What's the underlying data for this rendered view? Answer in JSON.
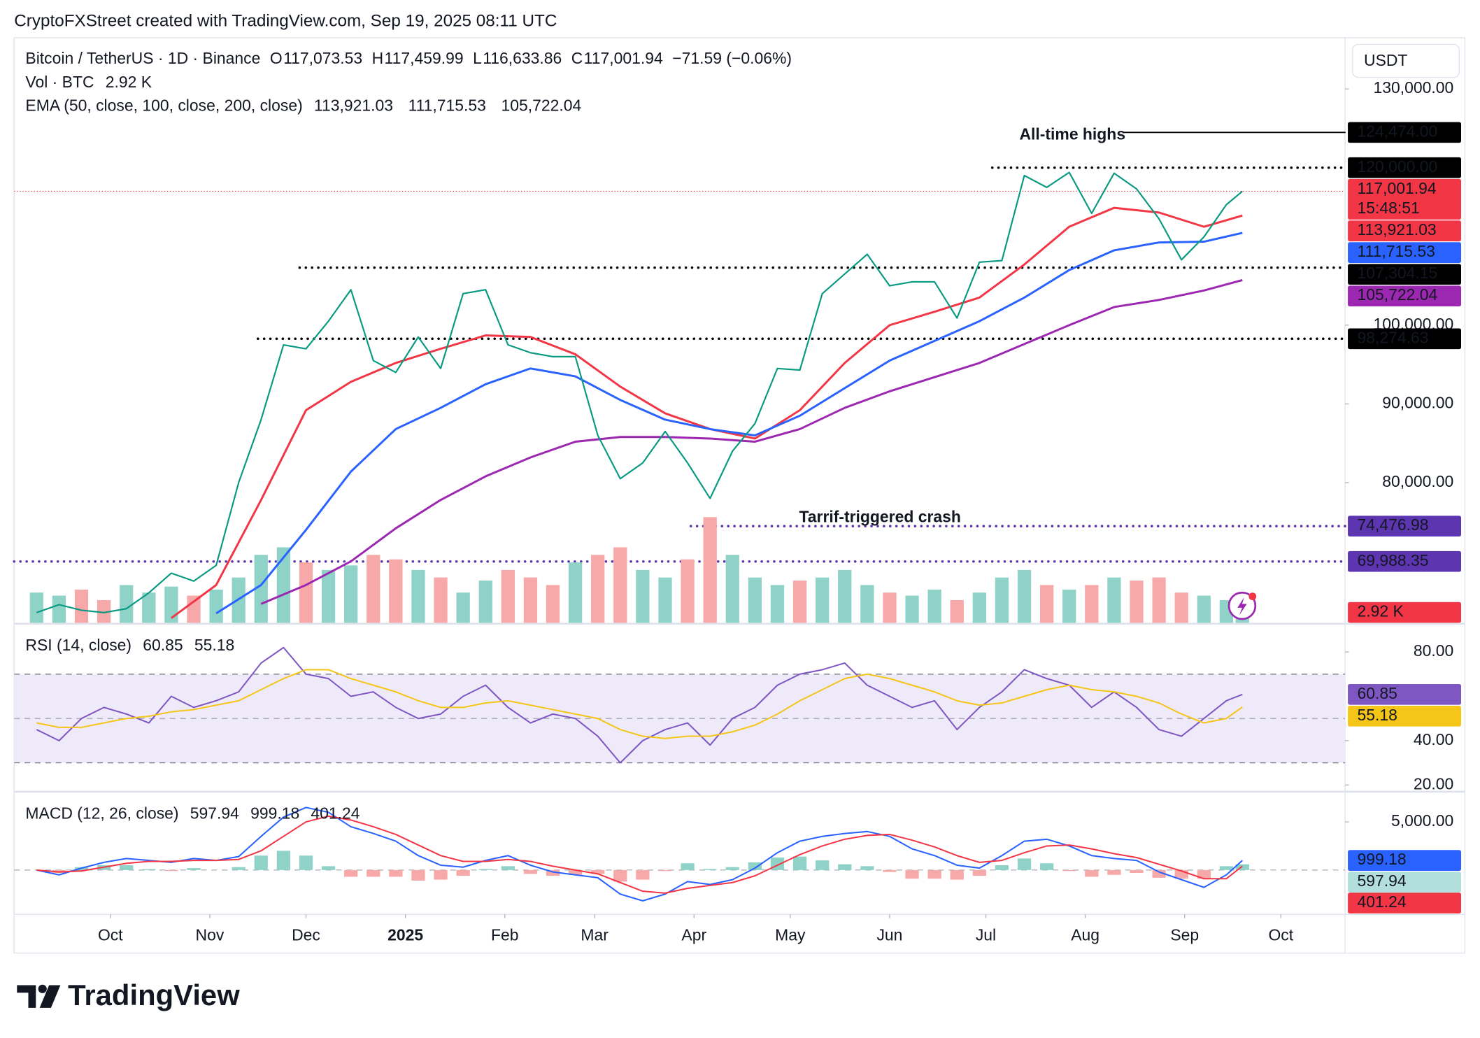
{
  "header": {
    "text": "CryptoFXStreet created with TradingView.com, Sep 19, 2025 08:11 UTC"
  },
  "currency": "USDT",
  "logo": "TradingView",
  "chart_data": [
    {
      "type": "line",
      "title": "Bitcoin / TetherUS · 1D · Binance",
      "readout_color": "#f23645",
      "ohlc": [
        {
          "key": "O",
          "text": "117,073.53"
        },
        {
          "key": "H",
          "text": "117,459.99"
        },
        {
          "key": "L",
          "text": "116,633.86"
        },
        {
          "key": "C",
          "text": "117,001.94"
        }
      ],
      "change": "−71.59 (−0.06%)",
      "x": [
        7,
        14,
        21,
        28,
        35,
        42,
        49,
        56,
        63,
        70,
        77,
        84,
        91,
        98,
        105,
        112,
        119,
        126,
        133,
        140,
        147,
        154,
        161,
        168,
        175,
        182,
        189,
        196,
        203,
        210,
        217,
        224,
        231,
        238,
        245,
        252,
        259,
        266,
        273,
        280,
        287,
        294,
        301,
        308,
        315,
        322,
        329,
        336,
        343,
        350,
        357,
        364,
        371,
        378,
        383
      ],
      "xlim": [
        0,
        415
      ],
      "ylim": [
        62200,
        136500
      ],
      "yticks": [
        {
          "value": 80000,
          "label": "80,000.00"
        },
        {
          "value": 90000,
          "label": "90,000.00"
        },
        {
          "value": 100000,
          "label": "100,000.00"
        },
        {
          "value": 130000,
          "label": "130,000.00"
        }
      ],
      "y2lim": [
        0,
        100000
      ],
      "series": [
        {
          "color": "#089981",
          "last_line": true,
          "last_label": "117,001.94",
          "countdown": "15:48:51",
          "box_color": "#f23645",
          "values": [
            63500,
            64500,
            63800,
            63500,
            64000,
            66000,
            68500,
            67500,
            69500,
            80000,
            88000,
            97500,
            97000,
            100500,
            104500,
            95500,
            94000,
            98500,
            94500,
            104000,
            104500,
            97500,
            96500,
            96000,
            96000,
            86000,
            80500,
            82500,
            86500,
            82500,
            78000,
            84000,
            87500,
            94500,
            94300,
            104000,
            106500,
            109000,
            105000,
            105500,
            105500,
            100900,
            108000,
            108200,
            119000,
            117500,
            119400,
            114200,
            119300,
            117300,
            113500,
            108300,
            111200,
            115300,
            117001.94
          ]
        },
        {
          "type": "bar",
          "axis": "y2",
          "title": "Vol · BTC",
          "up_color": "#8fd3c8",
          "down_color": "#f7a9a9",
          "color": "#f23645",
          "last_label": "2.92 K",
          "values": [
            20000,
            18000,
            22000,
            15000,
            25000,
            20000,
            24000,
            18000,
            22000,
            30000,
            45000,
            50000,
            40000,
            35000,
            38000,
            45000,
            42000,
            35000,
            30000,
            20000,
            28000,
            35000,
            30000,
            25000,
            40000,
            45000,
            50000,
            35000,
            30000,
            42000,
            70000,
            45000,
            30000,
            25000,
            28000,
            30000,
            35000,
            25000,
            20000,
            18000,
            22000,
            15000,
            20000,
            30000,
            35000,
            25000,
            22000,
            25000,
            30000,
            28000,
            30000,
            20000,
            18000,
            15000,
            2920
          ]
        }
      ],
      "ema": {
        "title": "EMA (50, close, 100, close, 200, close)",
        "series": [
          {
            "color": "#f23645",
            "last_label": "113,921.03",
            "x": [
              49,
              63,
              77,
              91,
              105,
              119,
              133,
              147,
              161,
              175,
              189,
              203,
              217,
              231,
              245,
              259,
              273,
              287,
              301,
              315,
              329,
              343,
              357,
              371,
              383
            ],
            "values": [
              62800,
              67000,
              77800,
              89200,
              92800,
              95200,
              97000,
              98700,
              98500,
              96300,
              92200,
              88800,
              86800,
              85600,
              89200,
              95200,
              100000,
              101700,
              103500,
              107700,
              112500,
              114900,
              114300,
              112500,
              113921.03
            ]
          },
          {
            "color": "#2962ff",
            "last_label": "111,715.53",
            "x": [
              63,
              77,
              91,
              105,
              119,
              133,
              147,
              161,
              175,
              189,
              203,
              217,
              231,
              245,
              259,
              273,
              287,
              301,
              315,
              329,
              343,
              357,
              371,
              383
            ],
            "values": [
              63400,
              67000,
              74000,
              81400,
              86800,
              89500,
              92500,
              94500,
              93500,
              90500,
              88000,
              86800,
              86000,
              88500,
              92000,
              95500,
              98000,
              100500,
              103500,
              107000,
              109500,
              110500,
              110600,
              111715.53
            ]
          },
          {
            "color": "#9c27b0",
            "last_label": "105,722.04",
            "x": [
              77,
              91,
              105,
              119,
              133,
              147,
              161,
              175,
              189,
              203,
              217,
              231,
              245,
              259,
              273,
              287,
              301,
              315,
              329,
              343,
              357,
              371,
              383
            ],
            "values": [
              64600,
              67000,
              70000,
              74200,
              77800,
              80800,
              83200,
              85200,
              85800,
              85800,
              85600,
              85200,
              86800,
              89500,
              91600,
              93400,
              95200,
              97600,
              100000,
              102300,
              103200,
              104400,
              105722.04
            ]
          }
        ]
      },
      "levels": [
        {
          "value": 124474,
          "label": "124,474.00",
          "from": 346,
          "style": "solid",
          "color": "#000000"
        },
        {
          "value": 120000,
          "label": "120,000.00",
          "from": 305,
          "style": "dotted",
          "color": "#000000"
        },
        {
          "value": 107304.15,
          "label": "107,304.15",
          "from": 89,
          "style": "dotted",
          "color": "#000000"
        },
        {
          "value": 98274.63,
          "label": "98,274.63",
          "from": 76,
          "style": "dotted",
          "color": "#000000"
        },
        {
          "value": 74476.98,
          "label": "74,476.98",
          "from": 211,
          "style": "dotted",
          "color": "#5e35b1"
        },
        {
          "value": 69988.35,
          "label": "69,988.35",
          "from": 0,
          "style": "dotted",
          "color": "#5e35b1"
        }
      ],
      "annotations": [
        {
          "text": "All-time highs",
          "x": 330,
          "y": 124100,
          "color": "#2962ff"
        },
        {
          "text": "Tarrif-triggered crash",
          "x": 270,
          "y": 75500,
          "color": "#2962ff"
        }
      ]
    },
    {
      "type": "line",
      "title": "RSI (14, close)",
      "x": [
        7,
        14,
        21,
        28,
        35,
        42,
        49,
        56,
        63,
        70,
        77,
        84,
        91,
        98,
        105,
        112,
        119,
        126,
        133,
        140,
        147,
        154,
        161,
        168,
        175,
        182,
        189,
        196,
        203,
        210,
        217,
        224,
        231,
        238,
        245,
        252,
        259,
        266,
        273,
        280,
        287,
        294,
        301,
        308,
        315,
        322,
        329,
        336,
        343,
        350,
        357,
        364,
        371,
        378,
        383
      ],
      "xlim": [
        0,
        415
      ],
      "ylim": [
        17.4,
        92.3
      ],
      "yticks": [
        {
          "value": 20,
          "label": "20.00"
        },
        {
          "value": 40,
          "label": "40.00"
        },
        {
          "value": 80,
          "label": "80.00"
        }
      ],
      "band": [
        30,
        70
      ],
      "midline": 50,
      "band_color": "#efeafa",
      "series": [
        {
          "color": "#7e57c2",
          "values": [
            45,
            40,
            50,
            55,
            52,
            48,
            60,
            55,
            58,
            62,
            75,
            82,
            70,
            68,
            60,
            62,
            55,
            50,
            52,
            60,
            65,
            55,
            48,
            52,
            50,
            42,
            30,
            40,
            45,
            48,
            38,
            50,
            55,
            65,
            70,
            72,
            75,
            65,
            60,
            55,
            58,
            45,
            55,
            62,
            72,
            68,
            65,
            55,
            62,
            55,
            45,
            42,
            50,
            58,
            60.85
          ]
        },
        {
          "color": "#f5c518",
          "values": [
            48,
            46,
            46,
            48,
            50,
            51,
            53,
            54,
            56,
            58,
            63,
            68,
            72,
            72,
            68,
            65,
            62,
            58,
            55,
            55,
            57,
            58,
            56,
            54,
            52,
            50,
            45,
            42,
            41,
            42,
            42,
            44,
            47,
            52,
            58,
            63,
            68,
            70,
            68,
            65,
            62,
            58,
            56,
            57,
            60,
            63,
            65,
            63,
            62,
            60,
            57,
            52,
            48,
            50,
            55.18
          ]
        }
      ]
    },
    {
      "type": "line",
      "title": "MACD (12, 26, close)",
      "x": [
        7,
        14,
        21,
        28,
        35,
        42,
        49,
        56,
        63,
        70,
        77,
        84,
        91,
        98,
        105,
        112,
        119,
        126,
        133,
        140,
        147,
        154,
        161,
        168,
        175,
        182,
        189,
        196,
        203,
        210,
        217,
        224,
        231,
        238,
        245,
        252,
        259,
        266,
        273,
        280,
        287,
        294,
        301,
        308,
        315,
        322,
        329,
        336,
        343,
        350,
        357,
        364,
        371,
        378,
        383
      ],
      "xlim": [
        0,
        415
      ],
      "ylim": [
        -4510,
        8040
      ],
      "yticks": [
        {
          "value": 5000,
          "label": "5,000.00"
        }
      ],
      "midline": 0,
      "xticks": [
        {
          "value": 30,
          "label": "Oct"
        },
        {
          "value": 61,
          "label": "Nov"
        },
        {
          "value": 91,
          "label": "Dec"
        },
        {
          "value": 122,
          "label": "2025"
        },
        {
          "value": 153,
          "label": "Feb"
        },
        {
          "value": 181,
          "label": "Mar"
        },
        {
          "value": 212,
          "label": "Apr"
        },
        {
          "value": 242,
          "label": "May"
        },
        {
          "value": 273,
          "label": "Jun"
        },
        {
          "value": 303,
          "label": "Jul"
        },
        {
          "value": 334,
          "label": "Aug"
        },
        {
          "value": 365,
          "label": "Sep"
        },
        {
          "value": 395,
          "label": "Oct"
        }
      ],
      "series": [
        {
          "type": "bar",
          "color": "#b2dfdb",
          "up_color": "#8fd3c8",
          "down_color": "#f7a9a9",
          "values": [
            0,
            -300,
            300,
            500,
            500,
            100,
            -100,
            200,
            0,
            300,
            1500,
            2000,
            1500,
            400,
            -700,
            -700,
            -700,
            -1100,
            -1000,
            -600,
            100,
            400,
            -400,
            -600,
            -500,
            -400,
            -1200,
            -1000,
            -100,
            700,
            100,
            300,
            800,
            1300,
            1400,
            1000,
            600,
            400,
            -200,
            -900,
            -900,
            -1000,
            -600,
            500,
            1200,
            700,
            -100,
            -700,
            -500,
            -300,
            -800,
            -900,
            -900,
            400,
            597.94
          ]
        },
        {
          "color": "#2962ff",
          "values": [
            0,
            -500,
            200,
            800,
            1200,
            1000,
            800,
            1200,
            1000,
            1400,
            3500,
            5500,
            6500,
            6000,
            4500,
            3800,
            3000,
            1500,
            500,
            300,
            1000,
            1500,
            500,
            -200,
            -500,
            -800,
            -2500,
            -3200,
            -2500,
            -1200,
            -1500,
            -1000,
            200,
            1800,
            3000,
            3500,
            3800,
            4000,
            3500,
            2200,
            1500,
            500,
            200,
            1500,
            3000,
            3200,
            2500,
            1500,
            1200,
            1000,
            -200,
            -1000,
            -1800,
            -500,
            999.18
          ]
        },
        {
          "color": "#f23645",
          "values": [
            0,
            -200,
            -100,
            300,
            700,
            900,
            900,
            1000,
            1000,
            1100,
            2000,
            3500,
            5000,
            5600,
            5200,
            4500,
            3700,
            2600,
            1500,
            900,
            900,
            1100,
            900,
            400,
            0,
            -400,
            -1300,
            -2200,
            -2400,
            -1900,
            -1600,
            -1300,
            -600,
            500,
            1600,
            2500,
            3200,
            3600,
            3700,
            3100,
            2400,
            1500,
            800,
            1000,
            1800,
            2500,
            2600,
            2200,
            1700,
            1300,
            600,
            -100,
            -900,
            -900,
            401.24
          ]
        }
      ]
    }
  ]
}
